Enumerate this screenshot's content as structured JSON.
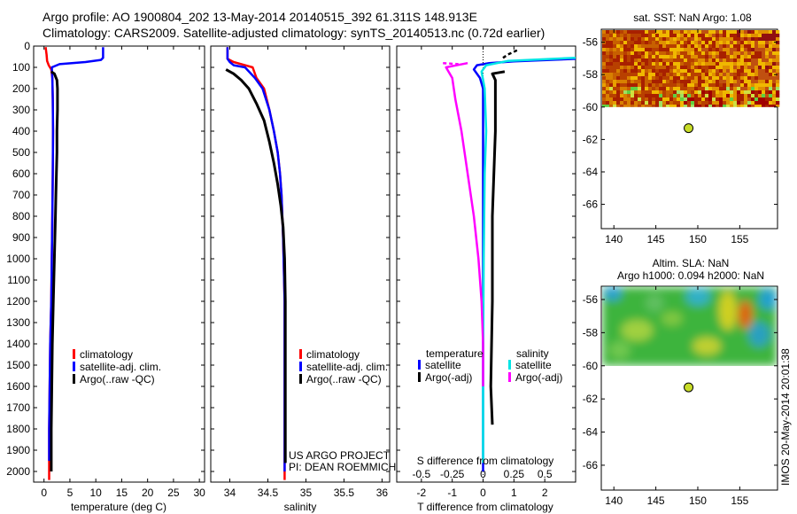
{
  "header": {
    "line1": "Argo profile: AO 1900804_202 13-May-2014 20140515_392 61.311S 148.913E",
    "line2": "Climatology: CARS2009. Satellite-adjusted climatology: synTS_20140513.nc (0.72d earlier)"
  },
  "chart_data": [
    {
      "name": "temperature",
      "type": "line",
      "xlabel": "temperature (deg C)",
      "xlim": [
        -2,
        31
      ],
      "xticks": [
        0,
        5,
        10,
        15,
        20,
        25,
        30
      ],
      "ylim": [
        2050,
        0
      ],
      "yticks": [
        0,
        100,
        200,
        300,
        400,
        500,
        600,
        700,
        800,
        900,
        1000,
        1100,
        1200,
        1300,
        1400,
        1500,
        1600,
        1700,
        1800,
        1900,
        2000
      ],
      "legend": [
        "climatology",
        "satellite-adj. clim.",
        "Argo(..raw -QC)"
      ],
      "series": [
        {
          "name": "climatology",
          "color": "#ff0000",
          "points": [
            [
              0.3,
              5
            ],
            [
              0.5,
              40
            ],
            [
              0.6,
              70
            ],
            [
              0.9,
              90
            ],
            [
              1.4,
              110
            ],
            [
              1.6,
              150
            ],
            [
              1.7,
              250
            ],
            [
              1.75,
              400
            ],
            [
              1.7,
              600
            ],
            [
              1.6,
              800
            ],
            [
              1.5,
              1000
            ],
            [
              1.4,
              1200
            ],
            [
              1.2,
              1400
            ],
            [
              1.1,
              1600
            ],
            [
              1.0,
              1800
            ],
            [
              1.0,
              2000
            ],
            [
              1.0,
              2040
            ]
          ]
        },
        {
          "name": "satellite-adj. clim.",
          "color": "#0000ff",
          "points": [
            [
              11.4,
              5
            ],
            [
              11.4,
              55
            ],
            [
              11.0,
              65
            ],
            [
              8,
              75
            ],
            [
              3,
              85
            ],
            [
              1.5,
              100
            ],
            [
              1.6,
              150
            ],
            [
              1.7,
              250
            ],
            [
              1.75,
              400
            ],
            [
              1.7,
              600
            ],
            [
              1.6,
              800
            ],
            [
              1.5,
              1000
            ],
            [
              1.4,
              1200
            ],
            [
              1.2,
              1400
            ],
            [
              1.1,
              1600
            ],
            [
              1.0,
              1800
            ],
            [
              1.0,
              1950
            ]
          ]
        },
        {
          "name": "Argo(..raw -QC)",
          "color": "#000000",
          "points": [
            [
              1.4,
              120
            ],
            [
              2.0,
              130
            ],
            [
              2.5,
              160
            ],
            [
              2.6,
              200
            ],
            [
              2.6,
              300
            ],
            [
              2.5,
              400
            ],
            [
              2.5,
              500
            ],
            [
              2.4,
              600
            ],
            [
              2.3,
              700
            ],
            [
              2.2,
              800
            ],
            [
              2.1,
              900
            ],
            [
              2.0,
              1000
            ],
            [
              1.9,
              1100
            ],
            [
              1.8,
              1200
            ],
            [
              1.6,
              1400
            ],
            [
              1.5,
              1600
            ],
            [
              1.4,
              1800
            ],
            [
              1.4,
              2000
            ]
          ]
        }
      ]
    },
    {
      "name": "salinity",
      "type": "line",
      "xlabel": "salinity",
      "xlim": [
        33.75,
        36.1
      ],
      "xticks": [
        34,
        34.5,
        35,
        35.5,
        36
      ],
      "ylim": [
        2050,
        0
      ],
      "legend": [
        "climatology",
        "satellite-adj. clim.",
        "Argo(..raw -QC)"
      ],
      "annotations": [
        "US ARGO PROJECT",
        "PI: DEAN ROEMMICH"
      ],
      "series": [
        {
          "name": "climatology",
          "color": "#ff0000",
          "points": [
            [
              33.97,
              5
            ],
            [
              33.97,
              60
            ],
            [
              34.05,
              75
            ],
            [
              34.2,
              90
            ],
            [
              34.3,
              100
            ],
            [
              34.35,
              150
            ],
            [
              34.45,
              200
            ],
            [
              34.52,
              300
            ],
            [
              34.58,
              400
            ],
            [
              34.63,
              500
            ],
            [
              34.66,
              600
            ],
            [
              34.68,
              700
            ],
            [
              34.7,
              900
            ],
            [
              34.72,
              1200
            ],
            [
              34.72,
              1600
            ],
            [
              34.72,
              2000
            ],
            [
              34.72,
              2040
            ]
          ]
        },
        {
          "name": "satellite-adj. clim.",
          "color": "#0000ff",
          "points": [
            [
              33.97,
              5
            ],
            [
              33.97,
              60
            ],
            [
              34.0,
              75
            ],
            [
              34.05,
              90
            ],
            [
              34.2,
              100
            ],
            [
              34.33,
              150
            ],
            [
              34.43,
              200
            ],
            [
              34.52,
              300
            ],
            [
              34.58,
              400
            ],
            [
              34.63,
              500
            ],
            [
              34.66,
              600
            ],
            [
              34.68,
              700
            ],
            [
              34.7,
              900
            ],
            [
              34.72,
              1200
            ],
            [
              34.72,
              1600
            ],
            [
              34.72,
              2000
            ]
          ]
        },
        {
          "name": "Argo(..raw -QC)",
          "color": "#000000",
          "points": [
            [
              33.95,
              110
            ],
            [
              34.05,
              130
            ],
            [
              34.15,
              160
            ],
            [
              34.25,
              200
            ],
            [
              34.35,
              270
            ],
            [
              34.45,
              350
            ],
            [
              34.52,
              450
            ],
            [
              34.58,
              550
            ],
            [
              34.63,
              650
            ],
            [
              34.67,
              750
            ],
            [
              34.7,
              850
            ],
            [
              34.72,
              1000
            ],
            [
              34.73,
              1200
            ],
            [
              34.73,
              1500
            ],
            [
              34.73,
              1800
            ],
            [
              34.73,
              1960
            ]
          ]
        }
      ]
    },
    {
      "name": "difference",
      "type": "line",
      "xlabel": "T difference from climatology",
      "xlim": [
        -2.8,
        3.0
      ],
      "xticks": [
        -2,
        -1,
        0,
        1,
        2
      ],
      "x2label": "S difference from climatology",
      "x2ticks": [
        -0.5,
        -0.25,
        0,
        0.25,
        0.5
      ],
      "x2ticklabels": [
        "-0.5",
        "-0.25",
        "0",
        "0.25",
        "0.5"
      ],
      "ylim": [
        2050,
        0
      ],
      "legend_titles": [
        "temperature",
        "salinity"
      ],
      "legend": [
        "satellite",
        "Argo(-adj)",
        "satellite",
        "Argo(-adj)"
      ],
      "series": [
        {
          "name": "T satellite",
          "color": "#0000ff",
          "points": [
            [
              3.0,
              60
            ],
            [
              1.0,
              72
            ],
            [
              0.2,
              80
            ],
            [
              -0.2,
              90
            ],
            [
              -0.3,
              110
            ],
            [
              -0.1,
              150
            ],
            [
              0.0,
              200
            ],
            [
              0.0,
              2000
            ]
          ]
        },
        {
          "name": "T Argo(-adj)",
          "color": "#000000",
          "points": [
            [
              0.7,
              120
            ],
            [
              0.3,
              130
            ],
            [
              0.4,
              160
            ],
            [
              0.4,
              400
            ],
            [
              0.3,
              800
            ],
            [
              0.3,
              1200
            ],
            [
              0.25,
              1600
            ],
            [
              0.3,
              1780
            ]
          ]
        },
        {
          "name": "S satellite",
          "color": "#00e5e5",
          "points": [
            [
              3.0,
              55
            ],
            [
              0.8,
              70
            ],
            [
              0.1,
              90
            ],
            [
              -0.05,
              120
            ],
            [
              0.05,
              200
            ],
            [
              0.1,
              400
            ],
            [
              0.05,
              600
            ],
            [
              0.02,
              1000
            ],
            [
              0.0,
              1500
            ],
            [
              0.0,
              1960
            ]
          ]
        },
        {
          "name": "S Argo(-adj)",
          "color": "#ff00ff",
          "points": [
            [
              -0.5,
              80
            ],
            [
              -1.2,
              100
            ],
            [
              -1.0,
              150
            ],
            [
              -0.9,
              250
            ],
            [
              -0.7,
              400
            ],
            [
              -0.5,
              600
            ],
            [
              -0.3,
              800
            ],
            [
              -0.15,
              1000
            ],
            [
              -0.05,
              1200
            ],
            [
              0.0,
              1400
            ],
            [
              0.0,
              1600
            ]
          ]
        }
      ],
      "dashed": [
        {
          "color": "#000000",
          "points": [
            [
              1.1,
              20
            ],
            [
              0.8,
              40
            ],
            [
              0.6,
              60
            ]
          ]
        },
        {
          "color": "#ff00ff",
          "points": [
            [
              -1.3,
              80
            ],
            [
              -0.8,
              85
            ]
          ]
        }
      ]
    }
  ],
  "maps": {
    "sst": {
      "title": "sat. SST: NaN Argo: 1.08",
      "xticks": [
        140,
        145,
        150,
        155
      ],
      "yticks": [
        -56,
        -58,
        -60,
        -62,
        -64,
        -66
      ],
      "xlim": [
        138.5,
        159.5
      ],
      "ylim": [
        -67.5,
        -55.2
      ],
      "data_lat_min": -60.0,
      "marker": {
        "lon": 148.9,
        "lat": -61.3,
        "color": "#c8dc28"
      }
    },
    "sla": {
      "title1": "Altim. SLA: NaN",
      "title2": "Argo h1000: 0.094 h2000: NaN",
      "xticks": [
        140,
        145,
        150,
        155
      ],
      "yticks": [
        -56,
        -58,
        -60,
        -62,
        -64,
        -66
      ],
      "xlim": [
        138.5,
        159.5
      ],
      "ylim": [
        -67.5,
        -55.2
      ],
      "data_lat_min": -60.0,
      "marker": {
        "lon": 148.9,
        "lat": -61.3,
        "color": "#c8dc28"
      }
    }
  },
  "side_label": "IMOS 20-May-2014 20:01:38"
}
